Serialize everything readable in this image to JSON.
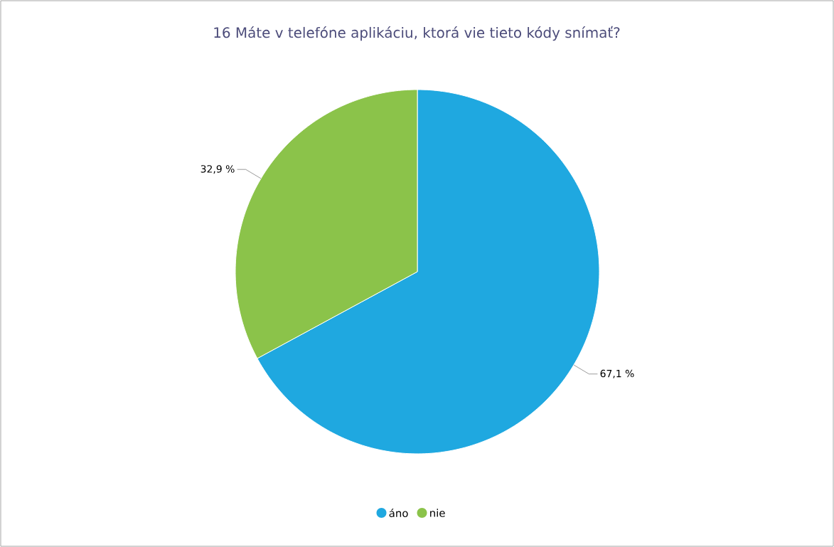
{
  "chart_data": {
    "type": "pie",
    "title": "16 Máte v telefóne aplikáciu, ktorá vie tieto kódy snímať?",
    "categories": [
      "áno",
      "nie"
    ],
    "values": [
      67.1,
      32.9
    ],
    "colors": [
      "#1fa8e0",
      "#8bc34a"
    ],
    "value_labels": [
      "67,1 %",
      "32,9 %"
    ],
    "legend": "bottom"
  }
}
